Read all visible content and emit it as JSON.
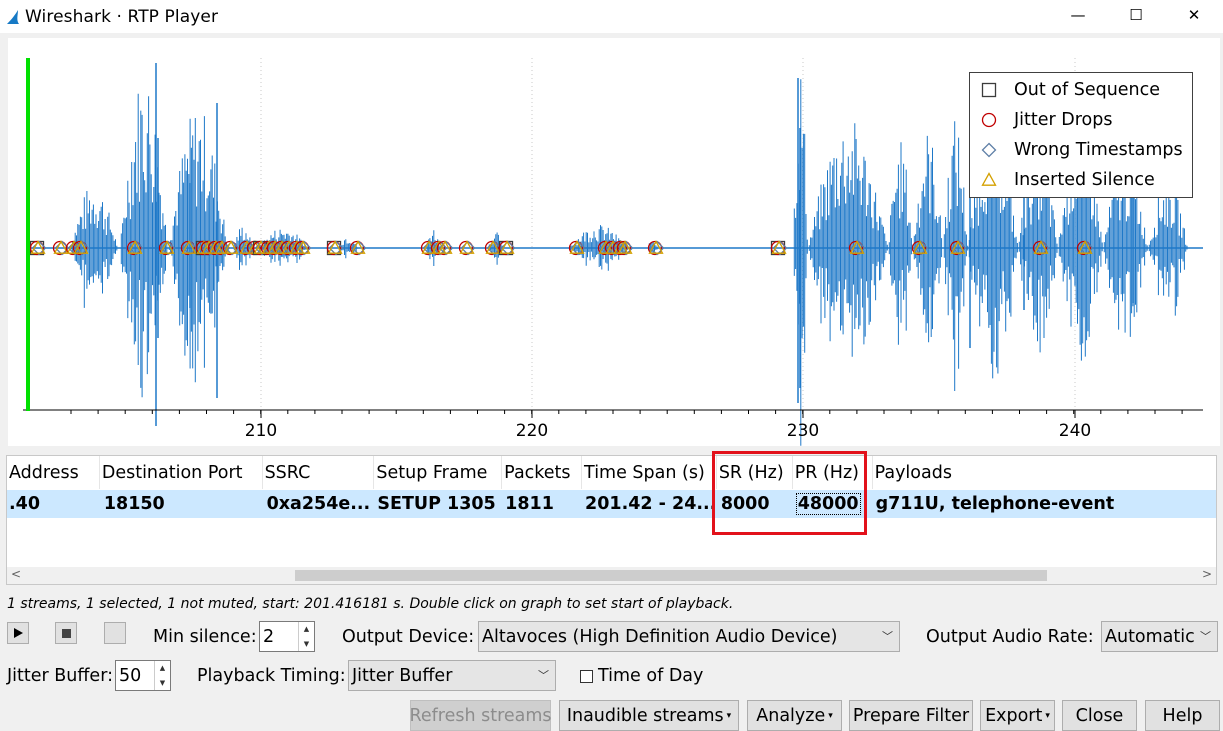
{
  "window": {
    "title": "Wireshark · RTP Player",
    "minimize": "—",
    "maximize": "☐",
    "close": "✕"
  },
  "graph": {
    "x_ticks": [
      "210",
      "220",
      "230",
      "240"
    ],
    "legend": [
      {
        "label": "Out of Sequence",
        "marker": "square",
        "color": "#3c3c3c"
      },
      {
        "label": "Jitter Drops",
        "marker": "circle",
        "color": "#c00000"
      },
      {
        "label": "Wrong Timestamps",
        "marker": "diamond",
        "color": "#5e7fa6"
      },
      {
        "label": "Inserted Silence",
        "marker": "triangle",
        "color": "#d4a000"
      }
    ],
    "waveform_color": "#1e78c8",
    "playhead_color": "#00e000"
  },
  "table": {
    "columns": [
      "Address",
      "Destination Port",
      "SSRC",
      "Setup Frame",
      "Packets",
      "Time Span (s)",
      "SR (Hz)",
      "PR (Hz)",
      "Payloads"
    ],
    "rows": [
      {
        "address": ".40",
        "dest_port": "18150",
        "ssrc": "0xa254e...",
        "setup_frame": "SETUP 1305",
        "packets": "1811",
        "time_span": "201.42 - 24...",
        "sr": "8000",
        "pr": "48000",
        "payloads": "g711U, telephone-event"
      }
    ],
    "highlight_color": "#e2111b"
  },
  "status": "1 streams, 1 selected, 1 not muted, start: 201.416181 s. Double click on graph to set start of playback.",
  "controls": {
    "min_silence_label": "Min silence:",
    "min_silence_value": "2",
    "output_device_label": "Output Device:",
    "output_device_value": "Altavoces (High Definition Audio Device)",
    "output_rate_label": "Output Audio Rate:",
    "output_rate_value": "Automatic",
    "jitter_buffer_label": "Jitter Buffer:",
    "jitter_buffer_value": "50",
    "playback_timing_label": "Playback Timing:",
    "playback_timing_value": "Jitter Buffer",
    "time_of_day_label": "Time of Day",
    "time_of_day_checked": false
  },
  "buttons": {
    "refresh": "Refresh streams",
    "inaudible": "Inaudible streams",
    "analyze": "Analyze",
    "prepare_filter": "Prepare Filter",
    "export": "Export",
    "close": "Close",
    "help": "Help"
  }
}
